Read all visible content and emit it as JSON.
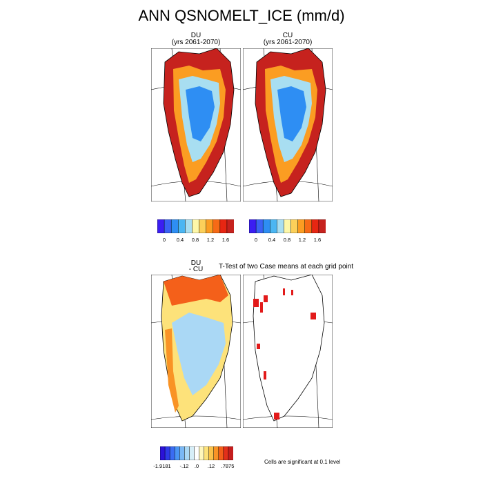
{
  "title": "ANN QSNOMELT_ICE (mm/d)",
  "panels": {
    "du": {
      "name": "DU",
      "years": "(yrs 2061-2070)"
    },
    "cu": {
      "name": "CU",
      "years": "(yrs 2061-2070)"
    },
    "diff": {
      "line1": "DU",
      "line2": "- CU"
    },
    "ttest": {
      "title": "T-Test of two Case means at each grid point"
    }
  },
  "colorbar_top": {
    "colors": [
      "#3b1ef2",
      "#3a62f4",
      "#2e8ef3",
      "#4bb6f2",
      "#a8def1",
      "#fdf7a8",
      "#fcd05a",
      "#fb9d22",
      "#f66a16",
      "#e72612",
      "#c6221e"
    ],
    "tick_labels": [
      "0",
      "0.4",
      "0.8",
      "1.2",
      "1.6"
    ]
  },
  "colorbar_diff": {
    "colors": [
      "#2b12d8",
      "#2d3ae8",
      "#3a6cf2",
      "#4a96f4",
      "#7ab8f5",
      "#aad8f5",
      "#d6eef8",
      "#ffffff",
      "#fff7bc",
      "#fde27a",
      "#fbc24a",
      "#f99325",
      "#f4601a",
      "#e3301a",
      "#c41d1d"
    ],
    "tick_labels": [
      "-1.9181",
      "-.12",
      ".0",
      ".12",
      ".7875"
    ]
  },
  "note": "Cells are significant at 0.1 level",
  "chart_data": [
    {
      "type": "heatmap",
      "title": "DU",
      "subtitle": "(yrs 2061-2070)",
      "variable": "ANN QSNOMELT_ICE",
      "units": "mm/d",
      "color_levels": [
        0,
        0.4,
        0.8,
        1.2,
        1.6
      ]
    },
    {
      "type": "heatmap",
      "title": "CU",
      "subtitle": "(yrs 2061-2070)",
      "variable": "ANN QSNOMELT_ICE",
      "units": "mm/d",
      "color_levels": [
        0,
        0.4,
        0.8,
        1.2,
        1.6
      ]
    },
    {
      "type": "heatmap",
      "title": "DU - CU",
      "color_levels": [
        "-1.9181",
        "-.12",
        ".0",
        ".12",
        ".7875"
      ]
    },
    {
      "type": "heatmap",
      "title": "T-Test of two Case means at each grid point",
      "annotation": "Cells are significant at 0.1 level"
    }
  ]
}
